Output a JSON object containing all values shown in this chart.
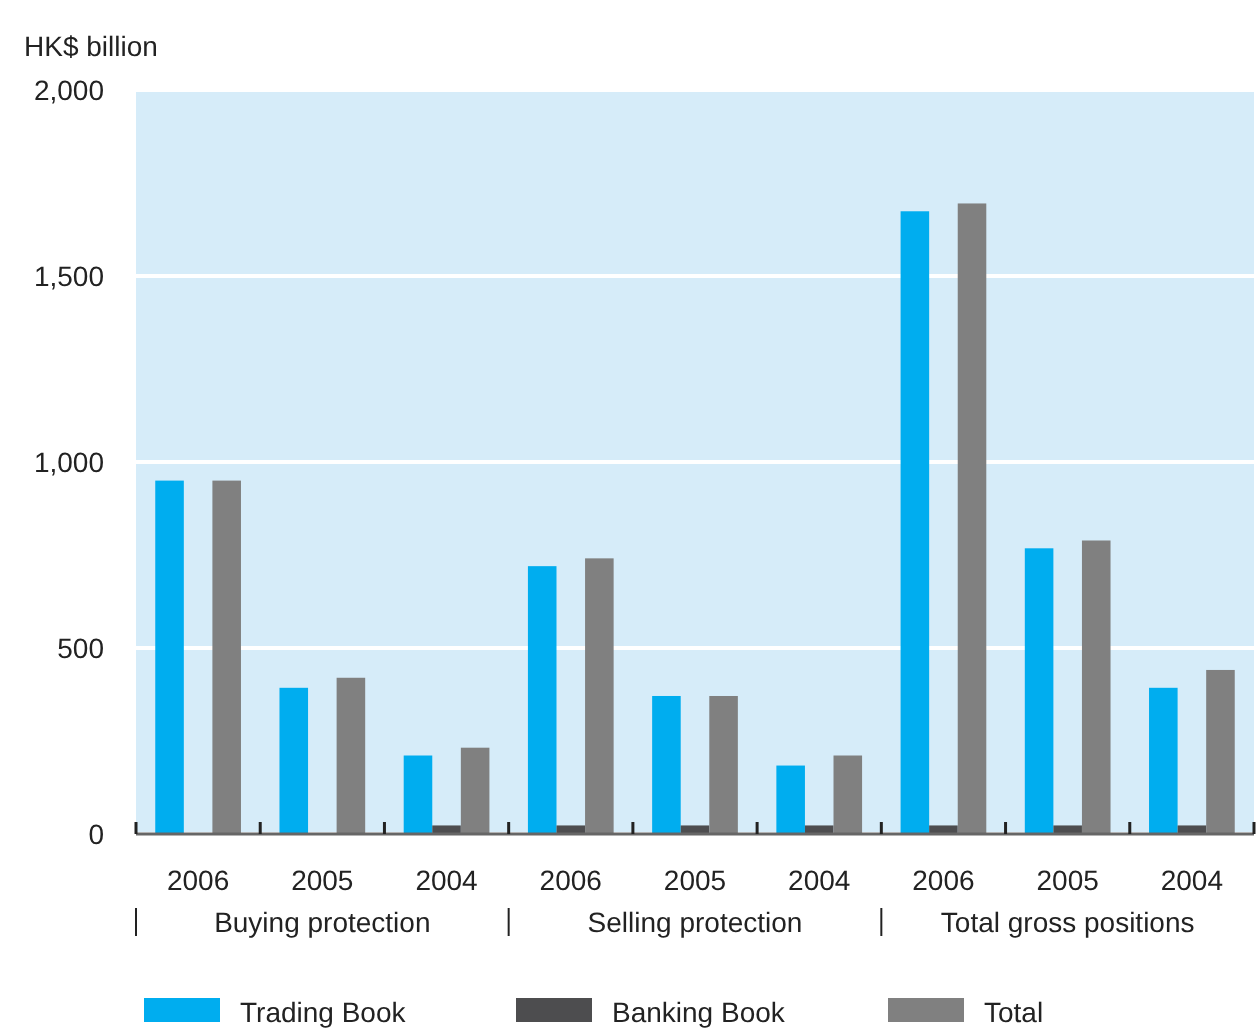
{
  "chart_data": {
    "type": "bar",
    "ylabel": "HK$ billion",
    "categories": [
      "2006",
      "2005",
      "2004",
      "2006",
      "2005",
      "2004",
      "2006",
      "2005",
      "2004"
    ],
    "series": [
      {
        "name": "Trading Book",
        "color": "#00adef",
        "values": [
          950,
          393,
          211,
          720,
          371,
          184,
          1674,
          768,
          393
        ]
      },
      {
        "name": "Banking Book",
        "color": "#4d4d4f",
        "values": [
          null,
          null,
          23,
          23,
          23,
          23,
          23,
          23,
          23
        ]
      },
      {
        "name": "Total",
        "color": "#808080",
        "values": [
          950,
          420,
          232,
          741,
          371,
          211,
          1695,
          789,
          441
        ]
      }
    ],
    "ylim": [
      0,
      2000
    ],
    "yticks": [
      0,
      500,
      {
        "value": 1000,
        "label": "1,000"
      },
      {
        "value": 1500,
        "label": "1,500"
      },
      {
        "value": 2000,
        "label": "2,000"
      }
    ],
    "grid": "y",
    "legend": "bottom",
    "annotations": [
      "Buying protection",
      "Selling protection",
      "Total gross positions"
    ]
  }
}
